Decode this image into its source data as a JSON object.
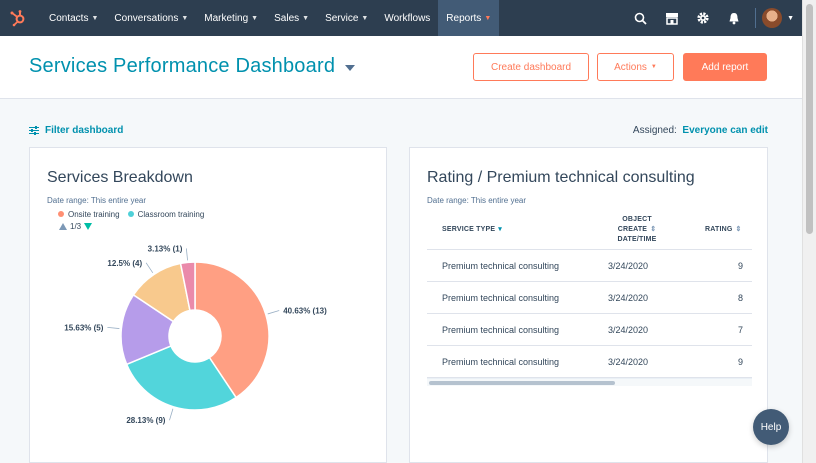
{
  "nav": {
    "items": [
      {
        "label": "Contacts",
        "chevron": true
      },
      {
        "label": "Conversations",
        "chevron": true
      },
      {
        "label": "Marketing",
        "chevron": true
      },
      {
        "label": "Sales",
        "chevron": true
      },
      {
        "label": "Service",
        "chevron": true
      },
      {
        "label": "Workflows",
        "chevron": false
      },
      {
        "label": "Reports",
        "chevron": true,
        "active": true
      }
    ],
    "icons": [
      "search-icon",
      "marketplace-icon",
      "settings-gear-icon",
      "notifications-bell-icon"
    ]
  },
  "header": {
    "title": "Services Performance Dashboard",
    "create_label": "Create dashboard",
    "actions_label": "Actions",
    "add_report_label": "Add report"
  },
  "filter": {
    "label": "Filter dashboard"
  },
  "assigned": {
    "label": "Assigned:",
    "value": "Everyone can edit"
  },
  "card1": {
    "title": "Services Breakdown",
    "date_range": "Date range: This entire year",
    "legend": [
      {
        "label": "Onsite training",
        "color": "#ff8f73"
      },
      {
        "label": "Classroom training",
        "color": "#4fd0d8"
      }
    ],
    "pager": "1/3"
  },
  "chart_data": {
    "type": "pie",
    "donut": true,
    "title": "Services Breakdown",
    "slices": [
      {
        "label": "40.63% (13)",
        "value": 13,
        "percent": 40.63,
        "color": "#ff9f83"
      },
      {
        "label": "28.13% (9)",
        "value": 9,
        "percent": 28.13,
        "color": "#52d5db"
      },
      {
        "label": "15.63% (5)",
        "value": 5,
        "percent": 15.63,
        "color": "#b69cea"
      },
      {
        "label": "12.5% (4)",
        "value": 4,
        "percent": 12.5,
        "color": "#f8c98d"
      },
      {
        "label": "3.13% (1)",
        "value": 1,
        "percent": 3.13,
        "color": "#ea8aaa"
      }
    ]
  },
  "card2": {
    "title": "Rating / Premium technical consulting",
    "date_range": "Date range: This entire year",
    "headers": [
      "SERVICE TYPE",
      "OBJECT",
      "CREATE",
      "DATE/TIME",
      "RATING"
    ],
    "rows": [
      {
        "service": "Premium technical consulting",
        "date": "3/24/2020",
        "rating": "9"
      },
      {
        "service": "Premium technical consulting",
        "date": "3/24/2020",
        "rating": "8"
      },
      {
        "service": "Premium technical consulting",
        "date": "3/24/2020",
        "rating": "7"
      },
      {
        "service": "Premium technical consulting",
        "date": "3/24/2020",
        "rating": "9"
      }
    ]
  },
  "help": {
    "label": "Help"
  }
}
